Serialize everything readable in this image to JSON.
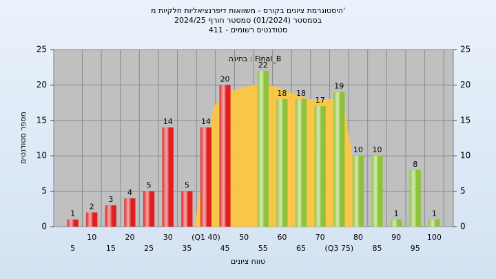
{
  "chart_data": {
    "type": "histogram",
    "title": [
      "היסטוגרמת ציונים בקורס - משוואות דיפרנציאליות חלקיות מ'",
      "בסמסטר  (01/2024)  סמסטר חורף  2024/25",
      "סטודנטים רשומים - 411"
    ],
    "annotation": "בחינה : Final_B",
    "x_label": "טווח ציונים",
    "y_label": "מספר סטודנטים",
    "x": [
      5,
      10,
      15,
      20,
      25,
      30,
      35,
      40,
      45,
      50,
      55,
      60,
      65,
      70,
      75,
      80,
      85,
      90,
      95,
      100
    ],
    "x_labels": [
      "5",
      "10",
      "15",
      "20",
      "25",
      "30",
      "35",
      "(Q1 40)",
      "45",
      "50",
      "55",
      "60",
      "65",
      "70",
      "(Q3 75)",
      "80",
      "85",
      "90",
      "95",
      "100"
    ],
    "values": [
      1,
      2,
      3,
      4,
      5,
      14,
      5,
      14,
      20,
      null,
      22,
      18,
      18,
      17,
      19,
      10,
      10,
      1,
      8,
      1
    ],
    "colors": [
      "#e02020",
      "#e02020",
      "#e02020",
      "#e02020",
      "#e02020",
      "#e02020",
      "#e02020",
      "#e02020",
      "#e02020",
      "#e02020",
      "#8fc23a",
      "#8fc23a",
      "#8fc23a",
      "#8fc23a",
      "#8fc23a",
      "#8fc23a",
      "#8fc23a",
      "#8fc23a",
      "#8fc23a",
      "#8fc23a"
    ],
    "area": {
      "color": "#ffc83c",
      "x": [
        37,
        42,
        47,
        52,
        57,
        62,
        67,
        72,
        76,
        80,
        80
      ],
      "values": [
        0,
        17,
        19.2,
        20,
        20,
        19,
        18,
        18,
        18,
        5,
        0
      ]
    },
    "xlim": [
      0,
      105
    ],
    "ylim": [
      0,
      25
    ],
    "yticks": [
      0,
      5,
      10,
      15,
      20,
      25
    ],
    "y2lim": [
      0,
      25
    ],
    "y2ticks": [
      0,
      5,
      10,
      15,
      20,
      25
    ],
    "grid": true
  }
}
